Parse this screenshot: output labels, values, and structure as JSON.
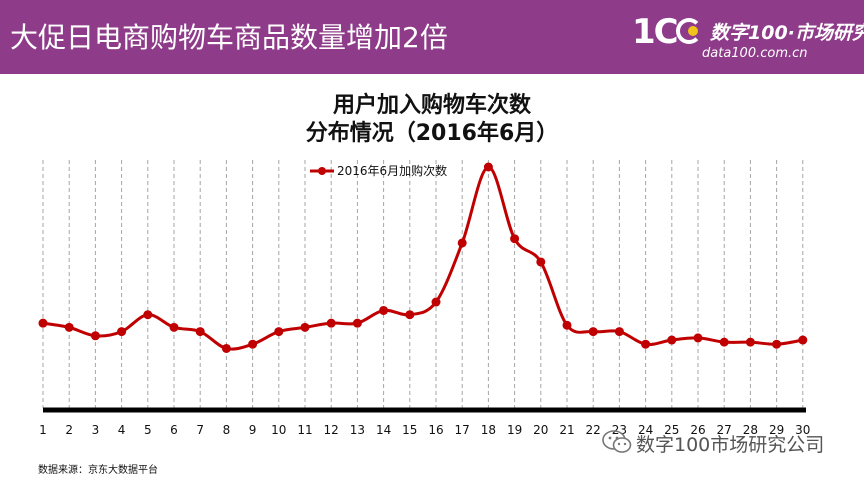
{
  "header": {
    "title": "大促日电商购物车商品数量增加2倍",
    "logo_mark": "1C",
    "logo_name": "数字100·市场研究",
    "logo_url": "data100.com.cn"
  },
  "chart_title": {
    "line1": "用户加入购物车次数",
    "line2": "分布情况（2016年6月）"
  },
  "source_note": "数据来源：京东大数据平台",
  "watermark": "数字100市场研究公司",
  "colors": {
    "banner": "#8e3c8a",
    "series": "#c00000",
    "axis": "#000000",
    "grid": "#a6a6a6"
  },
  "chart_data": {
    "type": "line",
    "categories": [
      "1",
      "2",
      "3",
      "4",
      "5",
      "6",
      "7",
      "8",
      "9",
      "10",
      "11",
      "12",
      "13",
      "14",
      "15",
      "16",
      "17",
      "18",
      "19",
      "20",
      "21",
      "22",
      "23",
      "24",
      "25",
      "26",
      "27",
      "28",
      "29",
      "30"
    ],
    "series": [
      {
        "name": "2016年6月加购次数",
        "values": [
          26,
          24,
          20,
          22,
          30,
          24,
          22,
          14,
          16,
          22,
          24,
          26,
          26,
          32,
          30,
          36,
          64,
          100,
          66,
          55,
          25,
          22,
          22,
          16,
          18,
          19,
          17,
          17,
          16,
          18
        ]
      }
    ],
    "legend_position": "top-left",
    "grid": "vertical dashed",
    "ylim": [
      0,
      100
    ]
  }
}
